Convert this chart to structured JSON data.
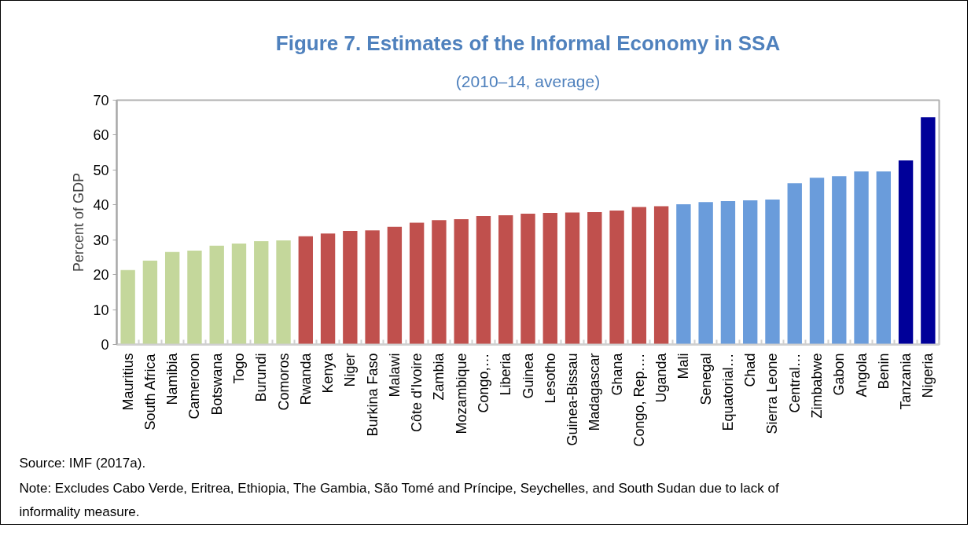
{
  "chart_data": {
    "type": "bar",
    "title": "Figure 7. Estimates of the Informal Economy in SSA",
    "subtitle": "(2010–14, average)",
    "ylabel": "Percent of GDP",
    "categories": [
      "Mauritius",
      "South Africa",
      "Namibia",
      "Cameroon",
      "Botswana",
      "Togo",
      "Burundi",
      "Comoros",
      "Rwanda",
      "Kenya",
      "Niger",
      "Burkina Faso",
      "Malawi",
      "Côte d'Ivoire",
      "Zambia",
      "Mozambique",
      "Congo,…",
      "Liberia",
      "Guinea",
      "Lesotho",
      "Guinea-Bissau",
      "Madagascar",
      "Ghana",
      "Congo, Rep.…",
      "Uganda",
      "Mali",
      "Senegal",
      "Equatorial…",
      "Chad",
      "Sierra Leone",
      "Central…",
      "Zimbabwe",
      "Gabon",
      "Angola",
      "Benin",
      "Tanzania",
      "Nigeria"
    ],
    "values": [
      21.3,
      24.0,
      26.5,
      26.9,
      28.3,
      28.9,
      29.6,
      29.8,
      31.0,
      31.8,
      32.5,
      32.7,
      33.7,
      34.9,
      35.6,
      35.9,
      36.8,
      37.0,
      37.5,
      37.7,
      37.8,
      37.9,
      38.4,
      39.4,
      39.6,
      40.2,
      40.8,
      41.1,
      41.3,
      41.5,
      46.2,
      47.8,
      48.2,
      49.6,
      49.6,
      52.7,
      65.1
    ],
    "colors": [
      "#c4d79b",
      "#c4d79b",
      "#c4d79b",
      "#c4d79b",
      "#c4d79b",
      "#c4d79b",
      "#c4d79b",
      "#c4d79b",
      "#c0504d",
      "#c0504d",
      "#c0504d",
      "#c0504d",
      "#c0504d",
      "#c0504d",
      "#c0504d",
      "#c0504d",
      "#c0504d",
      "#c0504d",
      "#c0504d",
      "#c0504d",
      "#c0504d",
      "#c0504d",
      "#c0504d",
      "#c0504d",
      "#c0504d",
      "#6a9cdb",
      "#6a9cdb",
      "#6a9cdb",
      "#6a9cdb",
      "#6a9cdb",
      "#6a9cdb",
      "#6a9cdb",
      "#6a9cdb",
      "#6a9cdb",
      "#6a9cdb",
      "#000099",
      "#000099"
    ],
    "ylim": [
      0,
      70
    ],
    "yticks": [
      0,
      10,
      20,
      30,
      40,
      50,
      60,
      70
    ],
    "annotations": [
      "Source: IMF (2017a).",
      "Note: Excludes Cabo Verde, Eritrea, Ethiopia, The Gambia, São Tomé and Príncipe, Seychelles, and South Sudan due to lack of informality measure."
    ]
  }
}
